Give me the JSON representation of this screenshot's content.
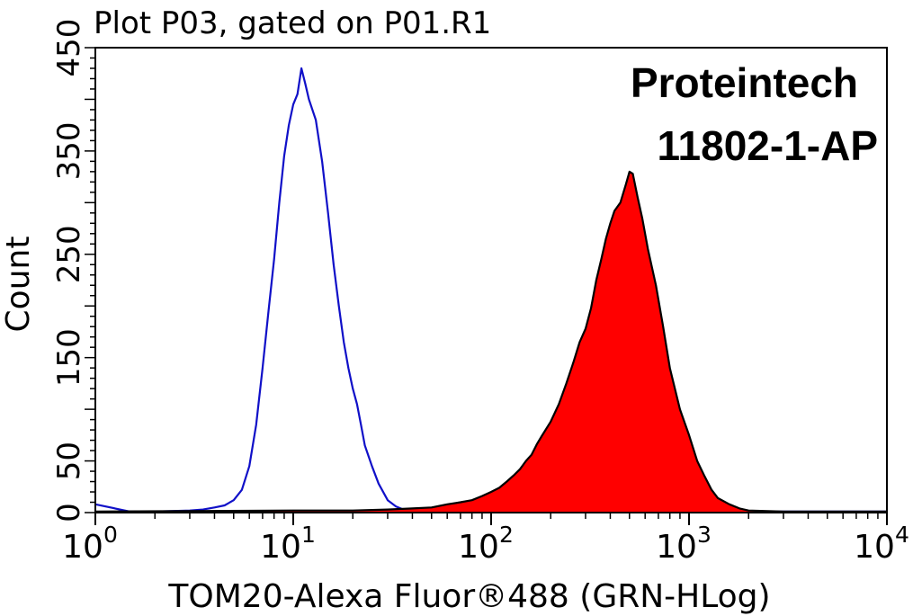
{
  "chart_data": {
    "type": "area",
    "title": "Plot P03, gated on P01.R1",
    "xlabel": "TOM20-Alexa Fluor®488 (GRN-HLog)",
    "ylabel": "Count",
    "x_scale": "log",
    "xlim": [
      1,
      10000
    ],
    "ylim": [
      0,
      450
    ],
    "x_ticks": [
      {
        "base": "10",
        "exp": "0"
      },
      {
        "base": "10",
        "exp": "1"
      },
      {
        "base": "10",
        "exp": "2"
      },
      {
        "base": "10",
        "exp": "3"
      },
      {
        "base": "10",
        "exp": "4"
      }
    ],
    "y_ticks": [
      "0",
      "50",
      "150",
      "250",
      "350",
      "450"
    ],
    "annotation": [
      "Proteintech",
      "11802-1-AP"
    ],
    "series": [
      {
        "color": "#1010c8",
        "fill": "none",
        "points": [
          [
            1,
            8
          ],
          [
            1.5,
            1
          ],
          [
            2,
            1
          ],
          [
            3,
            2
          ],
          [
            3.5,
            3
          ],
          [
            4,
            5
          ],
          [
            4.5,
            7
          ],
          [
            5,
            12
          ],
          [
            5.5,
            22
          ],
          [
            6,
            45
          ],
          [
            6.5,
            85
          ],
          [
            7,
            140
          ],
          [
            7.5,
            195
          ],
          [
            8,
            245
          ],
          [
            8.5,
            300
          ],
          [
            9,
            345
          ],
          [
            9.5,
            375
          ],
          [
            10,
            395
          ],
          [
            10.5,
            405
          ],
          [
            11,
            430
          ],
          [
            11.5,
            415
          ],
          [
            12,
            400
          ],
          [
            13,
            380
          ],
          [
            14,
            340
          ],
          [
            15,
            290
          ],
          [
            16,
            240
          ],
          [
            17,
            200
          ],
          [
            18,
            165
          ],
          [
            19,
            140
          ],
          [
            20,
            120
          ],
          [
            21,
            105
          ],
          [
            22,
            85
          ],
          [
            23,
            65
          ],
          [
            25,
            45
          ],
          [
            27,
            28
          ],
          [
            30,
            12
          ],
          [
            33,
            6
          ],
          [
            36,
            3
          ],
          [
            40,
            2
          ],
          [
            50,
            2
          ],
          [
            80,
            1
          ],
          [
            200,
            1
          ],
          [
            1000,
            1
          ],
          [
            10000,
            1
          ]
        ]
      },
      {
        "color": "#000000",
        "fill": "#ff0000",
        "points": [
          [
            1,
            1
          ],
          [
            10,
            2
          ],
          [
            20,
            2
          ],
          [
            30,
            3
          ],
          [
            40,
            4
          ],
          [
            50,
            5
          ],
          [
            60,
            8
          ],
          [
            70,
            10
          ],
          [
            80,
            12
          ],
          [
            90,
            16
          ],
          [
            100,
            20
          ],
          [
            110,
            24
          ],
          [
            120,
            30
          ],
          [
            130,
            36
          ],
          [
            140,
            42
          ],
          [
            150,
            50
          ],
          [
            160,
            56
          ],
          [
            170,
            66
          ],
          [
            180,
            74
          ],
          [
            200,
            88
          ],
          [
            220,
            105
          ],
          [
            240,
            125
          ],
          [
            260,
            145
          ],
          [
            280,
            165
          ],
          [
            300,
            178
          ],
          [
            320,
            198
          ],
          [
            340,
            225
          ],
          [
            360,
            245
          ],
          [
            380,
            265
          ],
          [
            400,
            280
          ],
          [
            420,
            292
          ],
          [
            450,
            300
          ],
          [
            480,
            318
          ],
          [
            500,
            330
          ],
          [
            520,
            328
          ],
          [
            550,
            305
          ],
          [
            580,
            285
          ],
          [
            620,
            255
          ],
          [
            680,
            220
          ],
          [
            740,
            180
          ],
          [
            800,
            140
          ],
          [
            900,
            100
          ],
          [
            1000,
            75
          ],
          [
            1100,
            50
          ],
          [
            1200,
            35
          ],
          [
            1300,
            22
          ],
          [
            1400,
            14
          ],
          [
            1600,
            8
          ],
          [
            1800,
            4
          ],
          [
            2000,
            2
          ],
          [
            3000,
            1
          ],
          [
            10000,
            1
          ]
        ]
      }
    ]
  }
}
